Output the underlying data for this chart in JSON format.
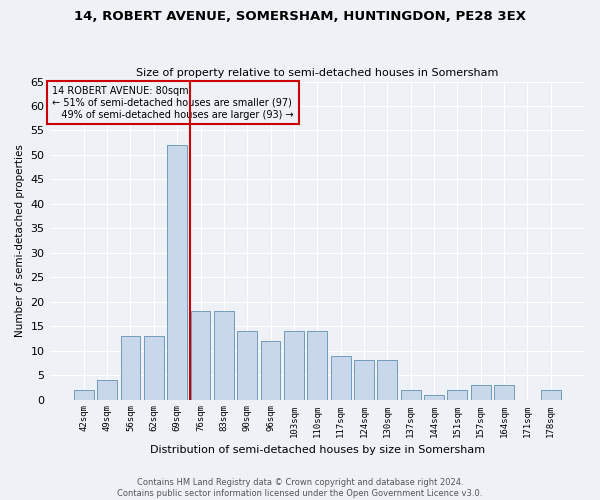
{
  "title": "14, ROBERT AVENUE, SOMERSHAM, HUNTINGDON, PE28 3EX",
  "subtitle": "Size of property relative to semi-detached houses in Somersham",
  "xlabel": "Distribution of semi-detached houses by size in Somersham",
  "ylabel": "Number of semi-detached properties",
  "footer1": "Contains HM Land Registry data © Crown copyright and database right 2024.",
  "footer2": "Contains public sector information licensed under the Open Government Licence v3.0.",
  "bar_labels": [
    "42sqm",
    "49sqm",
    "56sqm",
    "62sqm",
    "69sqm",
    "76sqm",
    "83sqm",
    "90sqm",
    "96sqm",
    "103sqm",
    "110sqm",
    "117sqm",
    "124sqm",
    "130sqm",
    "137sqm",
    "144sqm",
    "151sqm",
    "157sqm",
    "164sqm",
    "171sqm",
    "178sqm"
  ],
  "bar_values": [
    2,
    4,
    13,
    13,
    52,
    18,
    18,
    14,
    12,
    14,
    14,
    9,
    8,
    8,
    2,
    1,
    2,
    3,
    3,
    0,
    2
  ],
  "bar_color": "#c8d8ea",
  "bar_edge_color": "#6090b0",
  "ylim": [
    0,
    65
  ],
  "yticks": [
    0,
    5,
    10,
    15,
    20,
    25,
    30,
    35,
    40,
    45,
    50,
    55,
    60,
    65
  ],
  "property_label": "14 ROBERT AVENUE: 80sqm",
  "pct_smaller": 51,
  "pct_larger": 49,
  "count_smaller": 97,
  "count_larger": 93,
  "vline_x": 4.57,
  "vline_color": "#cc0000",
  "annotation_box_color": "#cc0000",
  "background_color": "#eef2f7",
  "grid_color": "#ffffff"
}
